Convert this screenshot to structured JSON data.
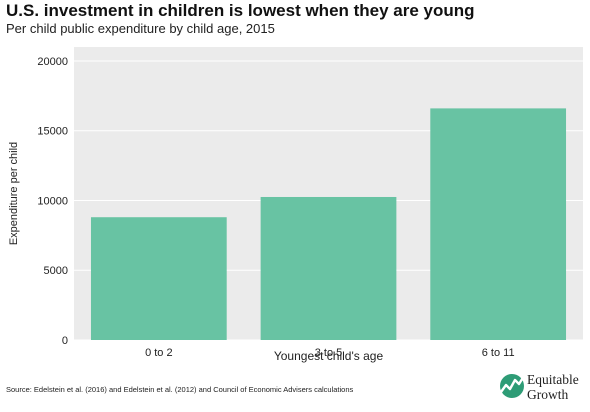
{
  "header": {
    "title": "U.S. investment in children is lowest when they are young",
    "subtitle": "Per child public expenditure by child age, 2015"
  },
  "chart_data": {
    "type": "bar",
    "categories": [
      "0 to 2",
      "3 to 5",
      "6 to 11"
    ],
    "values": [
      8800,
      10250,
      16600
    ],
    "xlabel": "Youngest child's age",
    "ylabel": "Expenditure per child",
    "ylim": [
      0,
      21000
    ],
    "yticks": [
      0,
      5000,
      10000,
      15000,
      20000
    ],
    "bar_color": "#68c3a3",
    "panel_color": "#ebebeb",
    "grid_color": "#ffffff",
    "grid": true
  },
  "footer": {
    "source": "Source: Edelstein et al. (2016) and Edelstein et al. (2012) and Council of Economic Advisers calculations",
    "brand_line1": "Equitable",
    "brand_line2": "Growth",
    "brand_color": "#2e9c76"
  }
}
